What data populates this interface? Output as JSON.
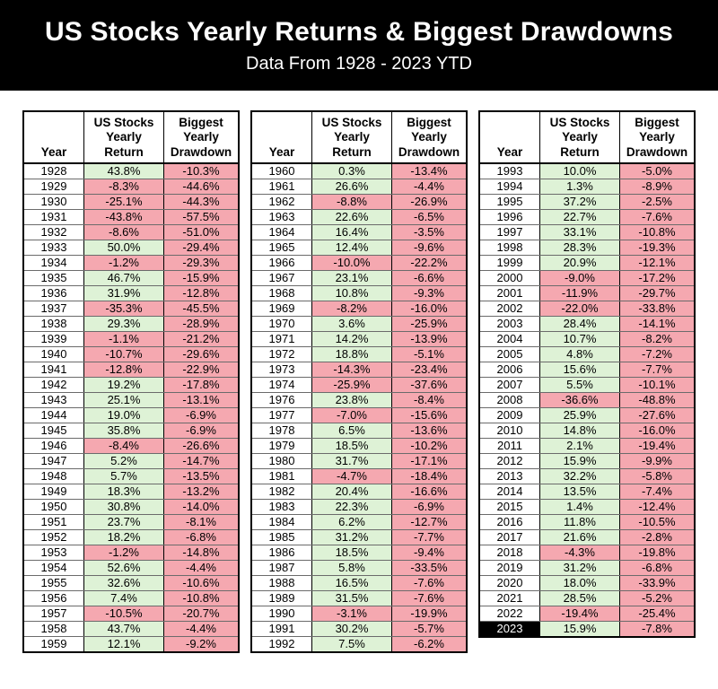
{
  "header": {
    "title": "US Stocks Yearly Returns & Biggest Drawdowns",
    "subtitle": "Data From 1928 - 2023 YTD"
  },
  "chart_data": {
    "type": "table",
    "title": "US Stocks Yearly Returns & Biggest Drawdowns",
    "subtitle": "Data From 1928 - 2023 YTD",
    "columns": [
      "Year",
      "US Stocks Yearly Return",
      "Biggest Yearly Drawdown"
    ],
    "highlighted_year": "2023",
    "colors": {
      "positive_bg": "#def2d6",
      "negative_bg": "#f5a8b0",
      "banner_bg": "#000000",
      "banner_fg": "#ffffff",
      "highlight_year_bg": "#000000",
      "highlight_year_fg": "#ffffff"
    },
    "tables": [
      {
        "rows": [
          [
            "1928",
            "43.8%",
            "-10.3%"
          ],
          [
            "1929",
            "-8.3%",
            "-44.6%"
          ],
          [
            "1930",
            "-25.1%",
            "-44.3%"
          ],
          [
            "1931",
            "-43.8%",
            "-57.5%"
          ],
          [
            "1932",
            "-8.6%",
            "-51.0%"
          ],
          [
            "1933",
            "50.0%",
            "-29.4%"
          ],
          [
            "1934",
            "-1.2%",
            "-29.3%"
          ],
          [
            "1935",
            "46.7%",
            "-15.9%"
          ],
          [
            "1936",
            "31.9%",
            "-12.8%"
          ],
          [
            "1937",
            "-35.3%",
            "-45.5%"
          ],
          [
            "1938",
            "29.3%",
            "-28.9%"
          ],
          [
            "1939",
            "-1.1%",
            "-21.2%"
          ],
          [
            "1940",
            "-10.7%",
            "-29.6%"
          ],
          [
            "1941",
            "-12.8%",
            "-22.9%"
          ],
          [
            "1942",
            "19.2%",
            "-17.8%"
          ],
          [
            "1943",
            "25.1%",
            "-13.1%"
          ],
          [
            "1944",
            "19.0%",
            "-6.9%"
          ],
          [
            "1945",
            "35.8%",
            "-6.9%"
          ],
          [
            "1946",
            "-8.4%",
            "-26.6%"
          ],
          [
            "1947",
            "5.2%",
            "-14.7%"
          ],
          [
            "1948",
            "5.7%",
            "-13.5%"
          ],
          [
            "1949",
            "18.3%",
            "-13.2%"
          ],
          [
            "1950",
            "30.8%",
            "-14.0%"
          ],
          [
            "1951",
            "23.7%",
            "-8.1%"
          ],
          [
            "1952",
            "18.2%",
            "-6.8%"
          ],
          [
            "1953",
            "-1.2%",
            "-14.8%"
          ],
          [
            "1954",
            "52.6%",
            "-4.4%"
          ],
          [
            "1955",
            "32.6%",
            "-10.6%"
          ],
          [
            "1956",
            "7.4%",
            "-10.8%"
          ],
          [
            "1957",
            "-10.5%",
            "-20.7%"
          ],
          [
            "1958",
            "43.7%",
            "-4.4%"
          ],
          [
            "1959",
            "12.1%",
            "-9.2%"
          ]
        ]
      },
      {
        "rows": [
          [
            "1960",
            "0.3%",
            "-13.4%"
          ],
          [
            "1961",
            "26.6%",
            "-4.4%"
          ],
          [
            "1962",
            "-8.8%",
            "-26.9%"
          ],
          [
            "1963",
            "22.6%",
            "-6.5%"
          ],
          [
            "1964",
            "16.4%",
            "-3.5%"
          ],
          [
            "1965",
            "12.4%",
            "-9.6%"
          ],
          [
            "1966",
            "-10.0%",
            "-22.2%"
          ],
          [
            "1967",
            "23.1%",
            "-6.6%"
          ],
          [
            "1968",
            "10.8%",
            "-9.3%"
          ],
          [
            "1969",
            "-8.2%",
            "-16.0%"
          ],
          [
            "1970",
            "3.6%",
            "-25.9%"
          ],
          [
            "1971",
            "14.2%",
            "-13.9%"
          ],
          [
            "1972",
            "18.8%",
            "-5.1%"
          ],
          [
            "1973",
            "-14.3%",
            "-23.4%"
          ],
          [
            "1974",
            "-25.9%",
            "-37.6%"
          ],
          [
            "1976",
            "23.8%",
            "-8.4%"
          ],
          [
            "1977",
            "-7.0%",
            "-15.6%"
          ],
          [
            "1978",
            "6.5%",
            "-13.6%"
          ],
          [
            "1979",
            "18.5%",
            "-10.2%"
          ],
          [
            "1980",
            "31.7%",
            "-17.1%"
          ],
          [
            "1981",
            "-4.7%",
            "-18.4%"
          ],
          [
            "1982",
            "20.4%",
            "-16.6%"
          ],
          [
            "1983",
            "22.3%",
            "-6.9%"
          ],
          [
            "1984",
            "6.2%",
            "-12.7%"
          ],
          [
            "1985",
            "31.2%",
            "-7.7%"
          ],
          [
            "1986",
            "18.5%",
            "-9.4%"
          ],
          [
            "1987",
            "5.8%",
            "-33.5%"
          ],
          [
            "1988",
            "16.5%",
            "-7.6%"
          ],
          [
            "1989",
            "31.5%",
            "-7.6%"
          ],
          [
            "1990",
            "-3.1%",
            "-19.9%"
          ],
          [
            "1991",
            "30.2%",
            "-5.7%"
          ],
          [
            "1992",
            "7.5%",
            "-6.2%"
          ]
        ]
      },
      {
        "rows": [
          [
            "1993",
            "10.0%",
            "-5.0%"
          ],
          [
            "1994",
            "1.3%",
            "-8.9%"
          ],
          [
            "1995",
            "37.2%",
            "-2.5%"
          ],
          [
            "1996",
            "22.7%",
            "-7.6%"
          ],
          [
            "1997",
            "33.1%",
            "-10.8%"
          ],
          [
            "1998",
            "28.3%",
            "-19.3%"
          ],
          [
            "1999",
            "20.9%",
            "-12.1%"
          ],
          [
            "2000",
            "-9.0%",
            "-17.2%"
          ],
          [
            "2001",
            "-11.9%",
            "-29.7%"
          ],
          [
            "2002",
            "-22.0%",
            "-33.8%"
          ],
          [
            "2003",
            "28.4%",
            "-14.1%"
          ],
          [
            "2004",
            "10.7%",
            "-8.2%"
          ],
          [
            "2005",
            "4.8%",
            "-7.2%"
          ],
          [
            "2006",
            "15.6%",
            "-7.7%"
          ],
          [
            "2007",
            "5.5%",
            "-10.1%"
          ],
          [
            "2008",
            "-36.6%",
            "-48.8%"
          ],
          [
            "2009",
            "25.9%",
            "-27.6%"
          ],
          [
            "2010",
            "14.8%",
            "-16.0%"
          ],
          [
            "2011",
            "2.1%",
            "-19.4%"
          ],
          [
            "2012",
            "15.9%",
            "-9.9%"
          ],
          [
            "2013",
            "32.2%",
            "-5.8%"
          ],
          [
            "2014",
            "13.5%",
            "-7.4%"
          ],
          [
            "2015",
            "1.4%",
            "-12.4%"
          ],
          [
            "2016",
            "11.8%",
            "-10.5%"
          ],
          [
            "2017",
            "21.6%",
            "-2.8%"
          ],
          [
            "2018",
            "-4.3%",
            "-19.8%"
          ],
          [
            "2019",
            "31.2%",
            "-6.8%"
          ],
          [
            "2020",
            "18.0%",
            "-33.9%"
          ],
          [
            "2021",
            "28.5%",
            "-5.2%"
          ],
          [
            "2022",
            "-19.4%",
            "-25.4%"
          ],
          [
            "2023",
            "15.9%",
            "-7.8%"
          ]
        ]
      }
    ]
  }
}
